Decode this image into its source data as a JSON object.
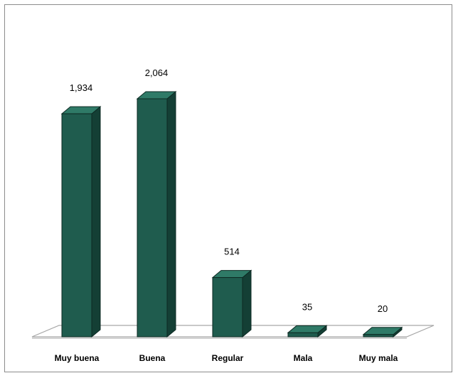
{
  "chart_data": {
    "type": "bar",
    "style": "3d-column",
    "title": "",
    "xlabel": "",
    "ylabel": "",
    "categories": [
      "Muy buena",
      "Buena",
      "Regular",
      "Mala",
      "Muy mala"
    ],
    "values": [
      1934,
      2064,
      514,
      35,
      20
    ],
    "value_labels": [
      "1,934",
      "2,064",
      "514",
      "35",
      "20"
    ],
    "ylim": [
      0,
      2064
    ],
    "grid": false,
    "legend": "none",
    "colors": {
      "bar_front": "#1f5c4e",
      "bar_side": "#143f35",
      "bar_top": "#2f7a67",
      "bar_outline": "#0d2a23",
      "floor_fill": "#ffffff",
      "floor_stroke": "#a6a6a6",
      "border": "#8c8c8c"
    }
  }
}
